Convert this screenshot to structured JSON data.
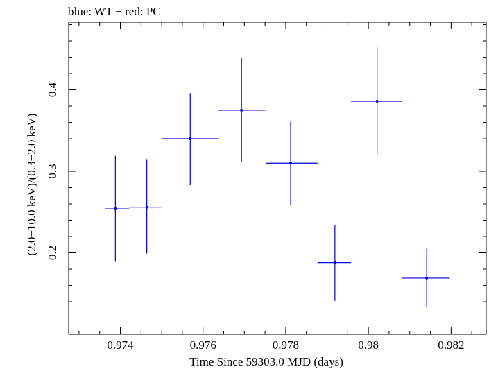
{
  "chart_data": {
    "type": "scatter",
    "title": "blue: WT − red: PC",
    "xlabel": "Time Since 59303.0 MJD (days)",
    "ylabel": "(2.0−10.0 keV)/(0.3−2.0 keV)",
    "xlim": [
      0.97275,
      0.98285
    ],
    "ylim": [
      0.1,
      0.483
    ],
    "x_ticks": [
      {
        "value": 0.974,
        "label": "0.974"
      },
      {
        "value": 0.976,
        "label": "0.976"
      },
      {
        "value": 0.978,
        "label": "0.978"
      },
      {
        "value": 0.98,
        "label": "0.98"
      },
      {
        "value": 0.982,
        "label": "0.982"
      }
    ],
    "y_ticks": [
      {
        "value": 0.2,
        "label": "0.2"
      },
      {
        "value": 0.3,
        "label": "0.3"
      },
      {
        "value": 0.4,
        "label": "0.4"
      }
    ],
    "grid": false,
    "series": [
      {
        "name": "WT",
        "color": "#0000dd",
        "points": [
          {
            "x": 0.97388,
            "y": 0.254,
            "x_lo": 0.97363,
            "x_hi": 0.97421,
            "y_lo": 0.189,
            "y_hi": 0.319
          },
          {
            "x": 0.97464,
            "y": 0.256,
            "x_lo": 0.97421,
            "x_hi": 0.97499,
            "y_lo": 0.199,
            "y_hi": 0.315
          },
          {
            "x": 0.97569,
            "y": 0.34,
            "x_lo": 0.97499,
            "x_hi": 0.97637,
            "y_lo": 0.283,
            "y_hi": 0.396
          },
          {
            "x": 0.97693,
            "y": 0.375,
            "x_lo": 0.97637,
            "x_hi": 0.97751,
            "y_lo": 0.312,
            "y_hi": 0.439
          },
          {
            "x": 0.97812,
            "y": 0.31,
            "x_lo": 0.97753,
            "x_hi": 0.97877,
            "y_lo": 0.259,
            "y_hi": 0.361
          },
          {
            "x": 0.97919,
            "y": 0.188,
            "x_lo": 0.97877,
            "x_hi": 0.97958,
            "y_lo": 0.141,
            "y_hi": 0.234
          },
          {
            "x": 0.98021,
            "y": 0.386,
            "x_lo": 0.97958,
            "x_hi": 0.98081,
            "y_lo": 0.321,
            "y_hi": 0.452
          },
          {
            "x": 0.98141,
            "y": 0.169,
            "x_lo": 0.9808,
            "x_hi": 0.98197,
            "y_lo": 0.133,
            "y_hi": 0.205
          }
        ]
      }
    ]
  }
}
